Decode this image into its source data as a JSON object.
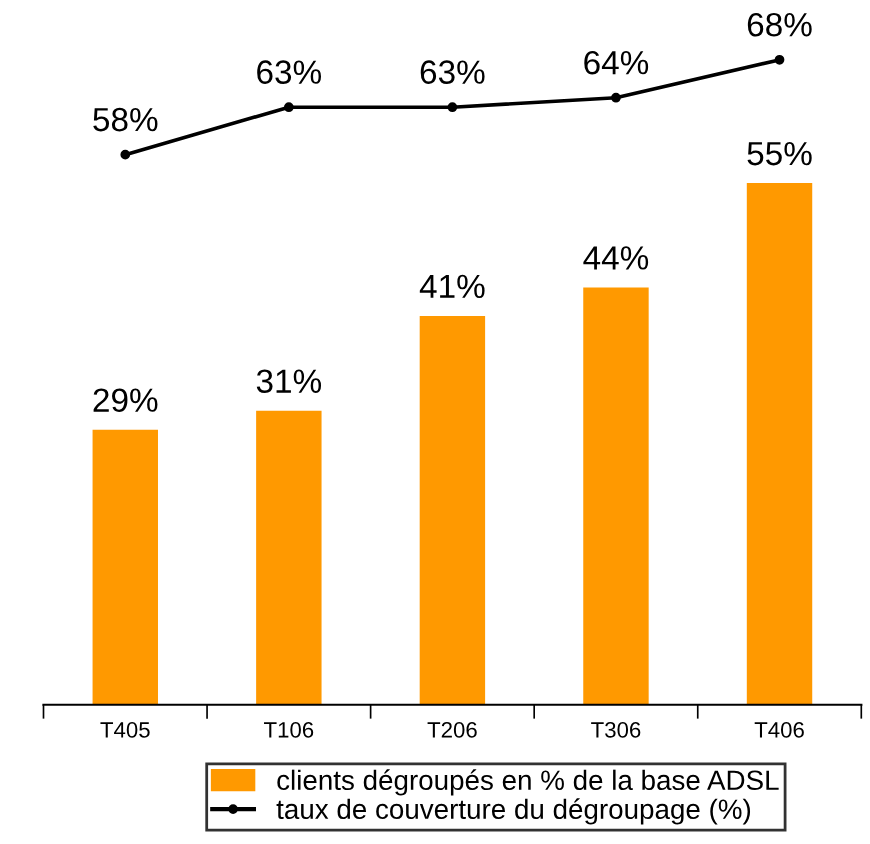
{
  "chart_data": {
    "type": "bar",
    "categories": [
      "T405",
      "T106",
      "T206",
      "T306",
      "T406"
    ],
    "series": [
      {
        "name": "clients dégroupés en % de la base ADSL",
        "color": "#ff9900",
        "values": [
          29,
          31,
          41,
          44,
          55
        ],
        "value_labels": [
          "29%",
          "31%",
          "41%",
          "44%",
          "55%"
        ]
      },
      {
        "name": "taux de couverture du dégroupage (%)",
        "type": "line",
        "color": "#000000",
        "values": [
          58,
          63,
          63,
          64,
          68
        ],
        "value_labels": [
          "58%",
          "63%",
          "63%",
          "64%",
          "68%"
        ]
      }
    ],
    "tick_labels": "x",
    "legend": "bottom",
    "marker": "circle",
    "line_style": "solid"
  }
}
